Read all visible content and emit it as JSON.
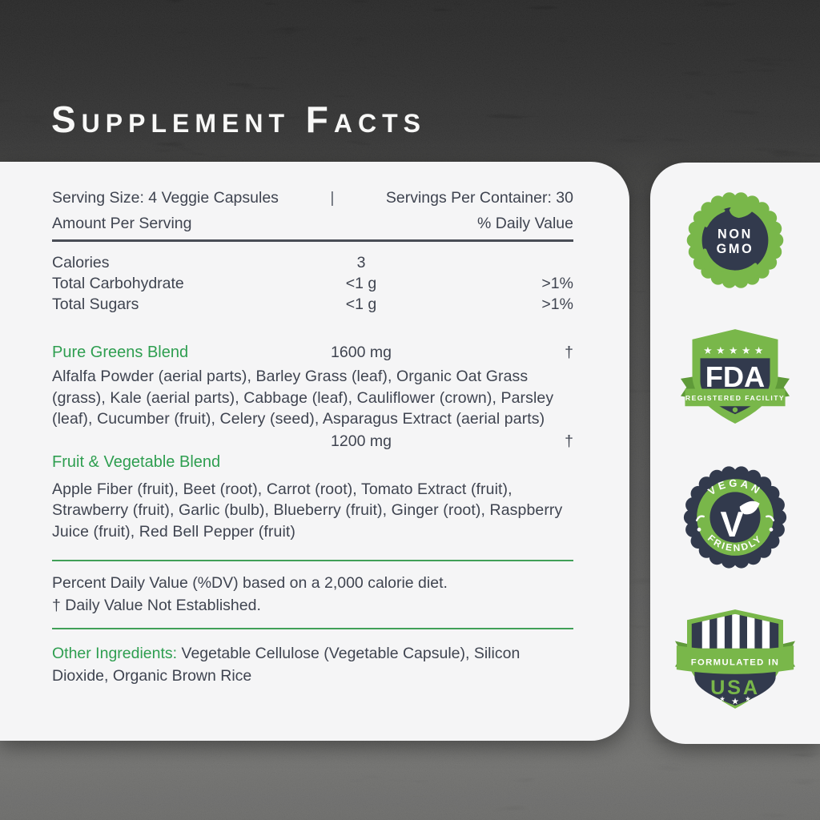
{
  "title": "Supplement Facts",
  "panel": {
    "serving_size": "Serving Size: 4 Veggie Capsules",
    "separator": "|",
    "servings_per_container": "Servings Per Container: 30",
    "amount_per_serving": "Amount Per Serving",
    "daily_value_header": "% Daily Value",
    "nutrient_rows": [
      {
        "name": "Calories",
        "amount": "3",
        "dv": ""
      },
      {
        "name": "Total Carbohydrate",
        "amount": "<1 g",
        "dv": ">1%"
      },
      {
        "name": "Total Sugars",
        "amount": "<1 g",
        "dv": ">1%"
      }
    ],
    "blends": [
      {
        "name": "Pure Greens Blend",
        "amount": "1600 mg",
        "dv": "†",
        "ingredients": "Alfalfa Powder (aerial parts), Barley Grass (leaf), Organic Oat Grass (grass), Kale (aerial parts), Cabbage (leaf), Cauliflower (crown), Parsley (leaf), Cucumber (fruit), Celery (seed), Asparagus Extract (aerial parts)"
      },
      {
        "name": "Fruit & Vegetable Blend",
        "amount": "1200 mg",
        "dv": "†",
        "ingredients": "Apple Fiber (fruit), Beet (root), Carrot (root), Tomato Extract (fruit), Strawberry (fruit), Garlic (bulb), Blueberry (fruit), Ginger (root), Raspberry Juice (fruit), Red Bell Pepper (fruit)"
      }
    ],
    "footnote_line1": "Percent Daily Value (%DV) based on a 2,000 calorie diet.",
    "footnote_line2": "† Daily Value Not Established.",
    "other_ingredients_label": "Other Ingredients:",
    "other_ingredients_text": " Vegetable Cellulose (Vegetable Capsule), Silicon Dioxide, Organic Brown Rice"
  },
  "badges": {
    "non_gmo": {
      "line1": "NON",
      "line2": "GMO"
    },
    "fda": {
      "stars": "★★★★★",
      "title": "FDA",
      "subtitle": "REGISTERED FACILITY"
    },
    "vegan": {
      "arc_top": "VEGAN",
      "arc_bottom": "FRIENDLY",
      "letter": "V"
    },
    "usa": {
      "banner": "FORMULATED IN",
      "title": "USA",
      "stars": [
        "★",
        "★",
        "★"
      ]
    }
  },
  "colors": {
    "accent_green_text": "#2e9e50",
    "badge_green": "#79b74a",
    "badge_green_dark": "#5f9a39",
    "badge_navy": "#323a4d",
    "panel_bg": "#f5f5f6",
    "divider_dark": "#494d56",
    "text_dark": "#3f4450"
  }
}
